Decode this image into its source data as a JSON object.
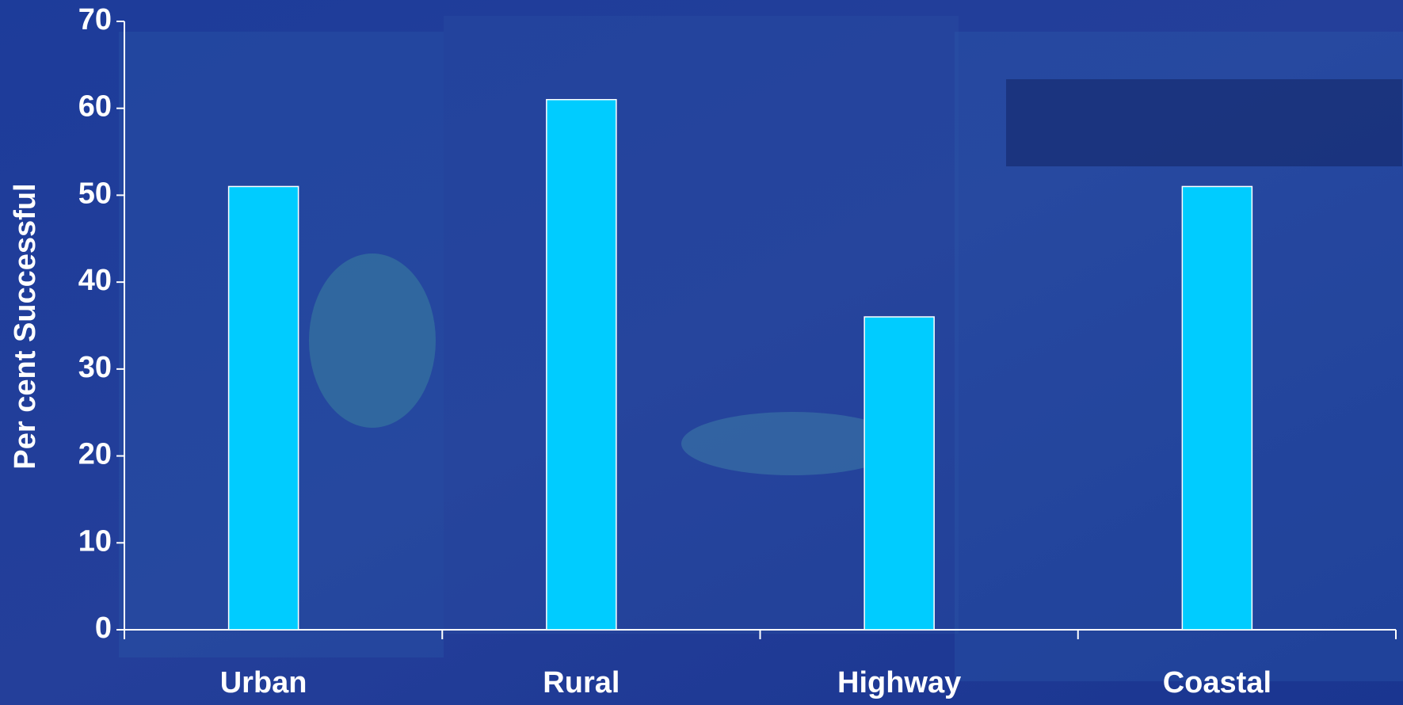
{
  "chart_data": {
    "type": "bar",
    "y_label": "Per cent Successful",
    "categories": [
      "Urban",
      "Rural",
      "Highway",
      "Coastal"
    ],
    "values": [
      51,
      61,
      36,
      51
    ],
    "color": "#00ccff",
    "ylim": [
      0,
      70
    ],
    "yticks": [
      0,
      10,
      20,
      30,
      40,
      50,
      60,
      70
    ],
    "grid": false
  }
}
